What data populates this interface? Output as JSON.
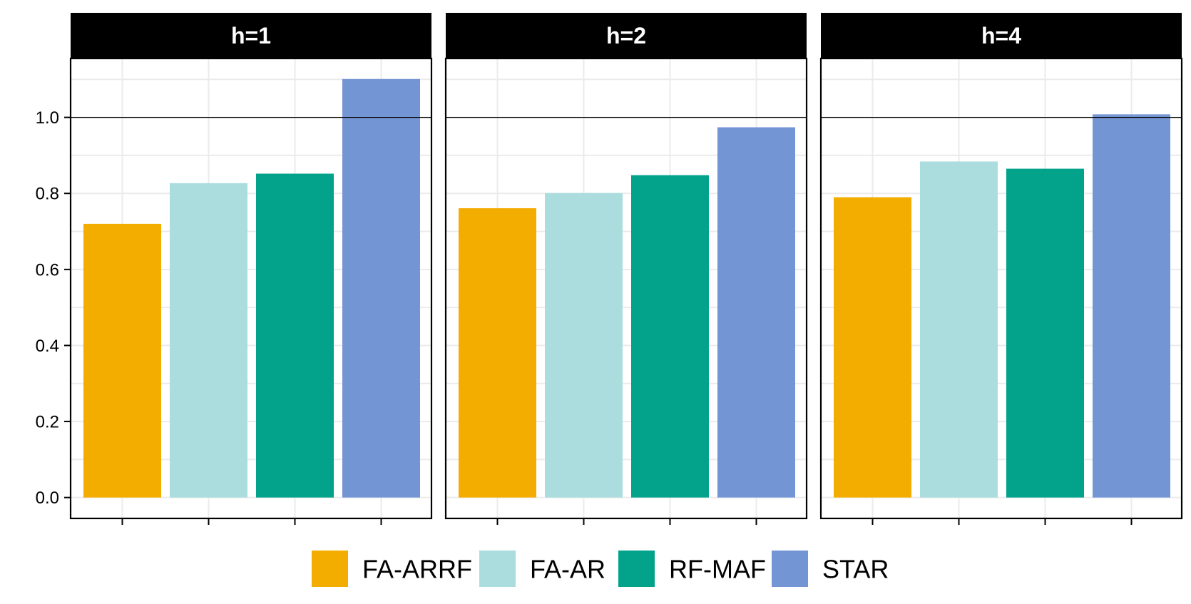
{
  "chart_data": {
    "type": "bar",
    "facet_variable": "h",
    "facets": [
      "h=1",
      "h=2",
      "h=4"
    ],
    "categories": [
      "FA-ARRF",
      "FA-AR",
      "RF-MAF",
      "STAR"
    ],
    "series": [
      {
        "facet": "h=1",
        "values": [
          0.72,
          0.827,
          0.852,
          1.101
        ]
      },
      {
        "facet": "h=2",
        "values": [
          0.761,
          0.801,
          0.848,
          0.974
        ]
      },
      {
        "facet": "h=4",
        "values": [
          0.79,
          0.884,
          0.865,
          1.008
        ]
      }
    ],
    "colors": [
      "#F2AD00",
      "#ABDDDE",
      "#02A38A",
      "#7495D4"
    ],
    "ylim": [
      -0.055,
      1.155
    ],
    "y_ticks": [
      0.0,
      0.2,
      0.4,
      0.6,
      0.8,
      1.0
    ],
    "y_tick_labels": [
      "0.0",
      "0.2",
      "0.4",
      "0.6",
      "0.8",
      "1.0"
    ],
    "reference_line": 1.0,
    "title": "",
    "xlabel": "",
    "ylabel": "",
    "legend": {
      "position": "bottom",
      "entries": [
        "FA-ARRF",
        "FA-AR",
        "RF-MAF",
        "STAR"
      ]
    }
  }
}
